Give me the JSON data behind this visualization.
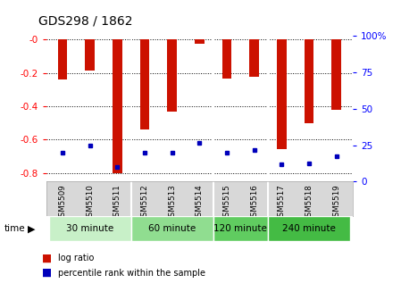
{
  "title": "GDS298 / 1862",
  "samples": [
    "GSM5509",
    "GSM5510",
    "GSM5511",
    "GSM5512",
    "GSM5513",
    "GSM5514",
    "GSM5515",
    "GSM5516",
    "GSM5517",
    "GSM5518",
    "GSM5519"
  ],
  "log_ratios": [
    -0.24,
    -0.185,
    -0.8,
    -0.54,
    -0.43,
    -0.025,
    -0.235,
    -0.225,
    -0.655,
    -0.5,
    -0.42
  ],
  "percentile_ranks": [
    20,
    25,
    10,
    20,
    20,
    27,
    20,
    22,
    12,
    13,
    18
  ],
  "groups": [
    {
      "label": "30 minute",
      "indices": [
        0,
        1,
        2
      ],
      "color": "#c8f0c8"
    },
    {
      "label": "60 minute",
      "indices": [
        3,
        4,
        5
      ],
      "color": "#90dd90"
    },
    {
      "label": "120 minute",
      "indices": [
        6,
        7
      ],
      "color": "#60cc60"
    },
    {
      "label": "240 minute",
      "indices": [
        8,
        9,
        10
      ],
      "color": "#44bb44"
    }
  ],
  "bar_color": "#cc1100",
  "dot_color": "#0000bb",
  "ylim_left": [
    -0.85,
    0.02
  ],
  "ylim_right": [
    0,
    100
  ],
  "yticks_left": [
    -0.8,
    -0.6,
    -0.4,
    -0.2,
    0.0
  ],
  "yticks_right": [
    0,
    25,
    50,
    75,
    100
  ],
  "bg_color": "#d8d8d8",
  "bar_width": 0.35,
  "legend_items": [
    {
      "label": "log ratio",
      "color": "#cc1100"
    },
    {
      "label": "percentile rank within the sample",
      "color": "#0000bb"
    }
  ]
}
